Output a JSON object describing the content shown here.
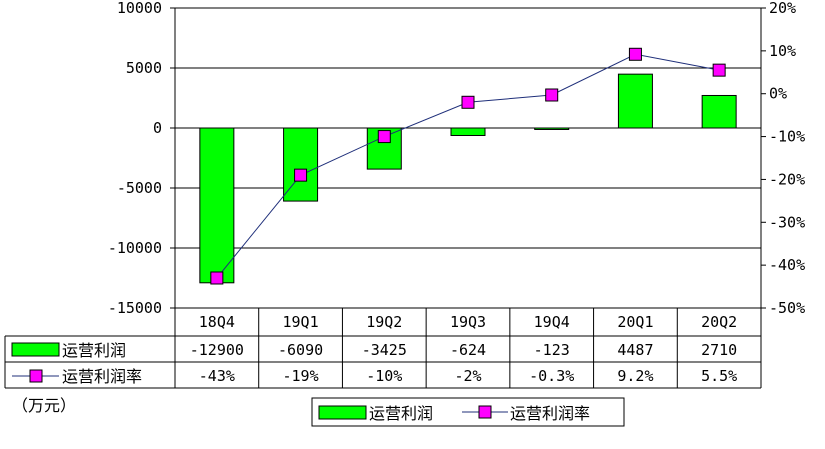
{
  "chart_data": {
    "type": "bar",
    "categories": [
      "18Q4",
      "19Q1",
      "19Q2",
      "19Q3",
      "19Q4",
      "20Q1",
      "20Q2"
    ],
    "series": [
      {
        "name": "运营利润",
        "kind": "bar",
        "axis": "left",
        "values": [
          -12900,
          -6090,
          -3425,
          -624,
          -123,
          4487,
          2710
        ],
        "labels": [
          "-12900",
          "-6090",
          "-3425",
          "-624",
          "-123",
          "4487",
          "2710"
        ],
        "color": "#00ff00"
      },
      {
        "name": "运营利润率",
        "kind": "line",
        "axis": "right",
        "values": [
          -43,
          -19,
          -10,
          -2,
          -0.3,
          9.2,
          5.5
        ],
        "labels": [
          "-43%",
          "-19%",
          "-10%",
          "-2%",
          "-0.3%",
          "9.2%",
          "5.5%"
        ],
        "color": "#1f2f7a",
        "marker_color": "#ff00ff"
      }
    ],
    "ylim": [
      -15000,
      10000
    ],
    "yticks": [
      "10000",
      "5000",
      "0",
      "-5000",
      "-10000",
      "-15000"
    ],
    "y2lim": [
      -50,
      20
    ],
    "y2ticks": [
      "20%",
      "10%",
      "0%",
      "-10%",
      "-20%",
      "-30%",
      "-40%",
      "-50%"
    ],
    "unit_label": "（万元）",
    "grid": true,
    "legend_position": "bottom"
  }
}
